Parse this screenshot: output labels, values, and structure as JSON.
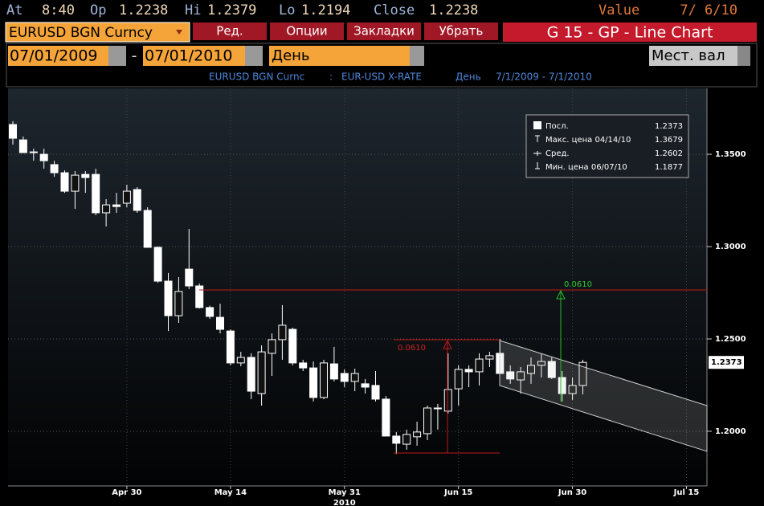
{
  "header": {
    "at_label": "At",
    "time": "8:40",
    "op_label": "Op",
    "op": 1.2238,
    "hi_label": "Hi",
    "hi": 1.2379,
    "lo_label": "Lo",
    "lo": 1.2194,
    "close_label": "Close",
    "close": 1.2238,
    "value_label": "Value",
    "value_date": "7/ 6/10"
  },
  "toolbar": {
    "security": "EURUSD BGN Curncy",
    "buttons": [
      "Ред.",
      "Опции",
      "Закладки",
      "Убрать"
    ],
    "function": "G 15 - GP - Line Chart"
  },
  "range": {
    "start": "07/01/2009",
    "dash": "-",
    "end": "07/01/2010",
    "period": "День",
    "currency": "Мест. вал"
  },
  "subtitle": [
    "EURUSD BGN Curnc",
    ":",
    "EUR-USD X-RATE",
    "День",
    "7/1/2009 - 7/1/2010"
  ],
  "chart_data": {
    "type": "candlestick",
    "categories": [
      null,
      null,
      null,
      null,
      null,
      null,
      null,
      null,
      null,
      null,
      null,
      "Apr 30",
      null,
      null,
      null,
      null,
      null,
      null,
      null,
      null,
      null,
      "May 14",
      null,
      null,
      null,
      null,
      null,
      null,
      null,
      null,
      null,
      null,
      "May 31",
      null,
      null,
      null,
      null,
      null,
      null,
      null,
      null,
      null,
      null,
      "Jun 15",
      null,
      null,
      null,
      null,
      null,
      null,
      null,
      null,
      null,
      null,
      "Jun 30",
      null,
      null,
      null,
      null,
      null,
      null,
      null,
      null,
      null,
      null,
      "Jul 15",
      null,
      null
    ],
    "x_group_label": "2010",
    "open": [
      1.3661,
      1.3578,
      1.3513,
      1.35,
      1.3444,
      1.34,
      1.33,
      1.3391,
      1.3391,
      1.3183,
      1.3226,
      1.3235,
      1.3309,
      1.3196,
      1.2996,
      1.2813,
      1.2626,
      1.2878,
      1.2787,
      1.267,
      1.2617,
      1.2543,
      1.237,
      1.24,
      1.2204,
      1.2422,
      1.2496,
      1.2552,
      1.237,
      1.2343,
      1.2183,
      1.2365,
      1.2313,
      1.227,
      1.2257,
      1.2248,
      1.2174,
      1.1974,
      1.193,
      1.197,
      1.1987,
      1.2126,
      1.2109,
      1.223,
      1.2335,
      1.2322,
      1.2391,
      1.2422,
      1.2322,
      1.2278,
      1.2313,
      1.2357,
      1.2378,
      1.2291,
      1.2204,
      1.2248,
      null,
      null,
      null,
      null,
      null,
      null,
      null,
      null,
      null,
      null,
      null,
      null
    ],
    "high": [
      1.3679,
      1.3596,
      1.353,
      1.353,
      1.3465,
      1.3413,
      1.3409,
      1.3409,
      1.3422,
      1.3257,
      1.3291,
      1.3335,
      1.3322,
      1.3213,
      1.3,
      1.2857,
      1.2835,
      1.3096,
      1.28,
      1.268,
      1.2691,
      1.2552,
      1.243,
      1.2422,
      1.2465,
      1.253,
      1.2683,
      1.2561,
      1.2387,
      1.2378,
      1.2387,
      1.2457,
      1.2335,
      1.2339,
      1.2283,
      1.2326,
      1.2191,
      1.1996,
      1.2009,
      1.2052,
      1.2139,
      1.2148,
      1.2422,
      1.2357,
      1.2357,
      1.2422,
      1.243,
      1.25,
      1.2357,
      1.2348,
      1.24,
      1.2422,
      1.24,
      1.2326,
      1.2291,
      1.2387,
      null,
      null,
      null,
      null,
      null,
      null,
      null,
      null,
      null,
      null,
      null,
      null
    ],
    "low": [
      1.3552,
      1.3509,
      1.3465,
      1.3422,
      1.3378,
      1.3291,
      1.3204,
      1.3291,
      1.317,
      1.3109,
      1.3183,
      1.3213,
      1.3183,
      1.2996,
      1.2804,
      1.2543,
      1.2587,
      1.277,
      1.2665,
      1.2609,
      1.253,
      1.2357,
      1.2352,
      1.2174,
      1.2139,
      1.23,
      1.2387,
      1.2357,
      1.2326,
      1.2161,
      1.2174,
      1.227,
      1.2239,
      1.2217,
      1.2204,
      1.2161,
      1.1974,
      1.1877,
      1.19,
      1.1922,
      1.1952,
      1.2009,
      1.2096,
      1.2139,
      1.2239,
      1.2248,
      1.2348,
      1.2313,
      1.2257,
      1.2204,
      1.2257,
      1.2291,
      1.2283,
      1.2161,
      1.217,
      1.22,
      null,
      null,
      null,
      null,
      null,
      null,
      null,
      null,
      null,
      null,
      null,
      null
    ],
    "close": [
      1.3587,
      1.3509,
      1.3509,
      1.3465,
      1.34,
      1.33,
      1.3387,
      1.3374,
      1.3183,
      1.3226,
      1.3217,
      1.33,
      1.3196,
      1.2996,
      1.2813,
      1.2626,
      1.2757,
      1.2787,
      1.267,
      1.2622,
      1.2552,
      1.237,
      1.24,
      1.2217,
      1.243,
      1.2496,
      1.2574,
      1.237,
      1.2343,
      1.2183,
      1.237,
      1.2283,
      1.227,
      1.2313,
      1.2239,
      1.2174,
      1.1974,
      1.1935,
      1.1983,
      1.1996,
      1.2126,
      1.2126,
      1.2226,
      1.2335,
      1.2322,
      1.2391,
      1.2409,
      1.2313,
      1.2283,
      1.2322,
      1.2357,
      1.2378,
      1.2291,
      1.2204,
      1.2248,
      1.2373,
      null,
      null,
      null,
      null,
      null,
      null,
      null,
      null,
      null,
      null,
      null,
      null
    ],
    "color": "#ffffff",
    "ylim": [
      1.1704,
      1.3857
    ],
    "yticks": [
      {
        "value": 1.2,
        "label": "1.2000"
      },
      {
        "value": 1.25,
        "label": "1.2500"
      },
      {
        "value": 1.3,
        "label": "1.3000"
      },
      {
        "value": 1.35,
        "label": "1.3500"
      }
    ],
    "grid": true,
    "last_value": 1.2373,
    "legend": [
      {
        "label": "Посл.",
        "value": 1.2373
      },
      {
        "label": "Макс. цена 04/14/10",
        "value": 1.3679
      },
      {
        "label": "Сред.",
        "value": 1.2602
      },
      {
        "label": "Мин. цена 06/07/10",
        "value": 1.1877
      }
    ],
    "annotations": [
      "0.0610",
      "0.0610"
    ]
  }
}
